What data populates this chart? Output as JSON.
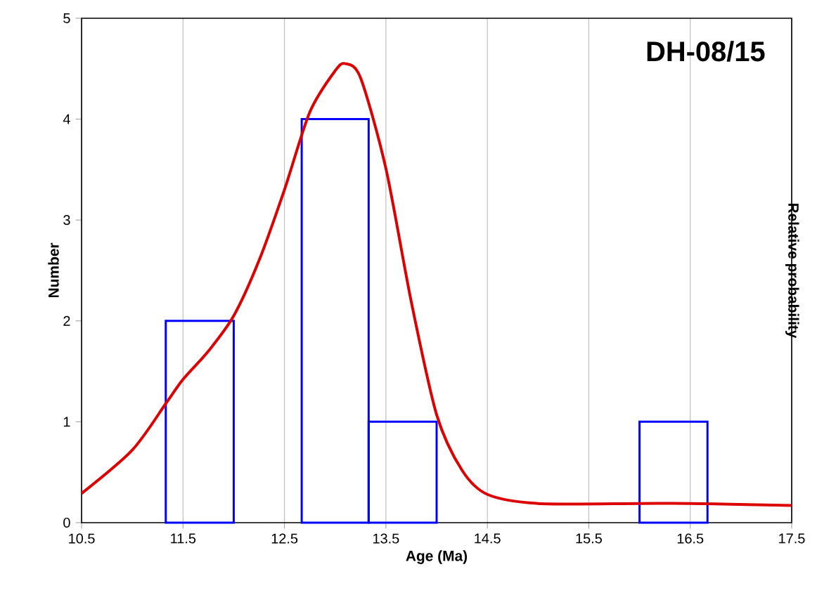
{
  "chart_data": {
    "type": "histogram",
    "title": "DH-08/15",
    "xlabel": "Age (Ma)",
    "ylabel": "Number",
    "y2label": "Relative probability",
    "xlim": [
      10.5,
      17.5
    ],
    "ylim": [
      0,
      5
    ],
    "xticks": [
      10.5,
      11.5,
      12.5,
      13.5,
      14.5,
      15.5,
      16.5,
      17.5
    ],
    "yticks": [
      0,
      1,
      2,
      3,
      4,
      5
    ],
    "grid": "x",
    "series": [
      {
        "color": "#0000ff",
        "bins": [
          11.33,
          12.0
        ],
        "values": [
          2
        ]
      },
      {
        "color": "#0000ff",
        "bins": [
          12.67,
          13.33,
          14.0
        ],
        "values": [
          4,
          1
        ]
      },
      {
        "color": "#0000ff",
        "bins": [
          16.0,
          16.67
        ],
        "values": [
          1
        ]
      },
      {
        "type": "line",
        "color": "#dd0000",
        "line_style": "solid",
        "marker": "none",
        "x": [
          10.5,
          11.0,
          11.33,
          11.5,
          11.75,
          12.0,
          12.25,
          12.5,
          12.75,
          13.0,
          13.1,
          13.25,
          13.5,
          13.75,
          14.0,
          14.25,
          14.5,
          15.0,
          16.0,
          16.5,
          17.5
        ],
        "values": [
          0.29,
          0.72,
          1.18,
          1.42,
          1.7,
          2.05,
          2.6,
          3.3,
          4.07,
          4.48,
          4.55,
          4.41,
          3.51,
          2.19,
          1.07,
          0.52,
          0.28,
          0.19,
          0.19,
          0.19,
          0.17
        ]
      }
    ]
  }
}
